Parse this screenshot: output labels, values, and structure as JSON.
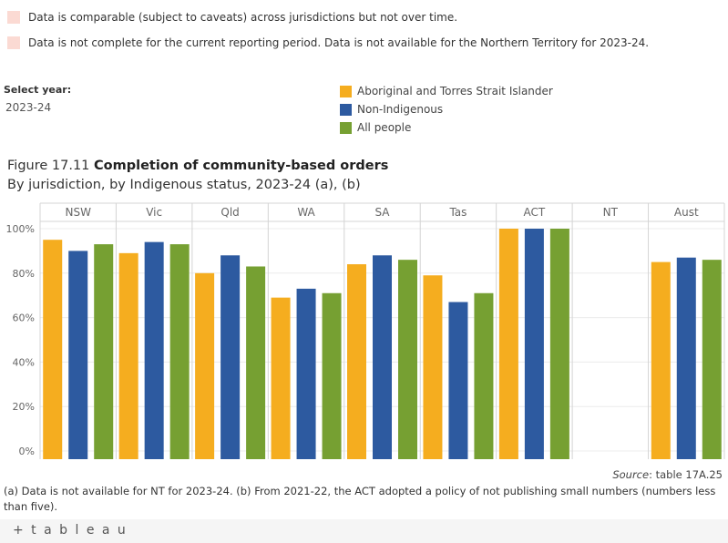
{
  "notes": [
    "Data is comparable (subject to caveats) across jurisdictions but not over time.",
    "Data is not complete for the current reporting period. Data is not available for the Northern Territory for 2023-24."
  ],
  "filter": {
    "label": "Select year:",
    "value": "2023-24"
  },
  "figure": {
    "number": "Figure 17.11",
    "title": "Completion of community-based orders",
    "subtitle": "By jurisdiction, by Indigenous status, 2023-24 (a), (b)"
  },
  "colors": {
    "indigenous": "#f5ad1f",
    "non_indigenous": "#2d5aa0",
    "all_people": "#76a032",
    "note_swatch": "#fbdad3"
  },
  "chart_data": {
    "type": "bar",
    "categories": [
      "NSW",
      "Vic",
      "Qld",
      "WA",
      "SA",
      "Tas",
      "ACT",
      "NT",
      "Aust"
    ],
    "series": [
      {
        "name": "Aboriginal and Torres Strait Islander",
        "values": [
          95,
          89,
          80,
          69,
          84,
          79,
          100,
          null,
          85
        ]
      },
      {
        "name": "Non-Indigenous",
        "values": [
          90,
          94,
          88,
          73,
          88,
          67,
          100,
          null,
          87
        ]
      },
      {
        "name": "All people",
        "values": [
          93,
          93,
          83,
          71,
          86,
          71,
          100,
          null,
          86
        ]
      }
    ],
    "yticks": [
      0,
      20,
      40,
      60,
      80,
      100
    ],
    "ytick_labels": [
      "0%",
      "20%",
      "40%",
      "60%",
      "80%",
      "100%"
    ],
    "ylim": [
      0,
      100
    ],
    "legend_position": "top-right"
  },
  "source": {
    "label": "Source",
    "text": ": table 17A.25"
  },
  "footnote": "(a) Data is not available for NT for 2023-24. (b) From 2021-22, the ACT adopted a policy of not publishing small numbers (numbers less than five).",
  "footer": {
    "brand": "+ t a b l e a u"
  }
}
